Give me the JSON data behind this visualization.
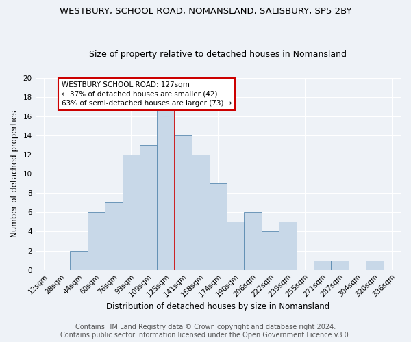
{
  "title": "WESTBURY, SCHOOL ROAD, NOMANSLAND, SALISBURY, SP5 2BY",
  "subtitle": "Size of property relative to detached houses in Nomansland",
  "xlabel": "Distribution of detached houses by size in Nomansland",
  "ylabel": "Number of detached properties",
  "categories": [
    "12sqm",
    "28sqm",
    "44sqm",
    "60sqm",
    "76sqm",
    "93sqm",
    "109sqm",
    "125sqm",
    "141sqm",
    "158sqm",
    "174sqm",
    "190sqm",
    "206sqm",
    "222sqm",
    "239sqm",
    "255sqm",
    "271sqm",
    "287sqm",
    "304sqm",
    "320sqm",
    "336sqm"
  ],
  "values": [
    0,
    0,
    2,
    6,
    7,
    12,
    13,
    17,
    14,
    12,
    9,
    5,
    6,
    4,
    5,
    0,
    1,
    1,
    0,
    1,
    0
  ],
  "bar_color": "#c8d8e8",
  "bar_edge_color": "#5a8ab0",
  "vline_index": 7.5,
  "annotation_text": "WESTBURY SCHOOL ROAD: 127sqm\n← 37% of detached houses are smaller (42)\n63% of semi-detached houses are larger (73) →",
  "annotation_box_color": "#ffffff",
  "annotation_border_color": "#cc0000",
  "vline_color": "#cc0000",
  "ylim": [
    0,
    20
  ],
  "yticks": [
    0,
    2,
    4,
    6,
    8,
    10,
    12,
    14,
    16,
    18,
    20
  ],
  "footer_line1": "Contains HM Land Registry data © Crown copyright and database right 2024.",
  "footer_line2": "Contains public sector information licensed under the Open Government Licence v3.0.",
  "background_color": "#eef2f7",
  "grid_color": "#ffffff",
  "title_fontsize": 9.5,
  "subtitle_fontsize": 9,
  "axis_label_fontsize": 8.5,
  "tick_fontsize": 7.5,
  "annotation_fontsize": 7.5,
  "footer_fontsize": 7
}
